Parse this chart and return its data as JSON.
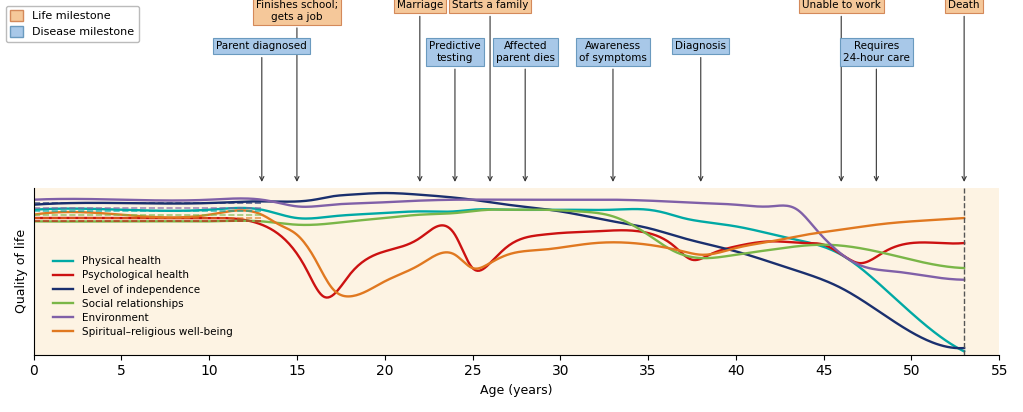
{
  "background_color": "#fdf3e3",
  "life_milestone_color": "#f5c89a",
  "life_milestone_edge": "#d4895a",
  "disease_milestone_color": "#a8c8e8",
  "disease_milestone_edge": "#6a9abf",
  "line_colors": {
    "physical": "#00a9a5",
    "psychological": "#cc1111",
    "independence": "#1a2f6e",
    "social": "#7ab648",
    "environment": "#8060a8",
    "spiritual": "#e07820"
  },
  "life_milestones": [
    {
      "label": "Finishes school;\ngets a job",
      "age": 15
    },
    {
      "label": "Marriage",
      "age": 22
    },
    {
      "label": "Starts a family",
      "age": 26
    },
    {
      "label": "Unable to work",
      "age": 46
    },
    {
      "label": "Death",
      "age": 53
    }
  ],
  "disease_milestones": [
    {
      "label": "Parent diagnosed",
      "age": 13
    },
    {
      "label": "Predictive\ntesting",
      "age": 24
    },
    {
      "label": "Affected\nparent dies",
      "age": 28
    },
    {
      "label": "Awareness\nof symptoms",
      "age": 33
    },
    {
      "label": "Diagnosis",
      "age": 38
    },
    {
      "label": "Requires\n24-hour care",
      "age": 48
    }
  ],
  "xlim": [
    0,
    55
  ],
  "ylim": [
    0,
    1
  ],
  "xlabel": "Age (years)",
  "ylabel": "Quality of life",
  "dashed_line_color": "#888888",
  "dashed_line_x": 53
}
